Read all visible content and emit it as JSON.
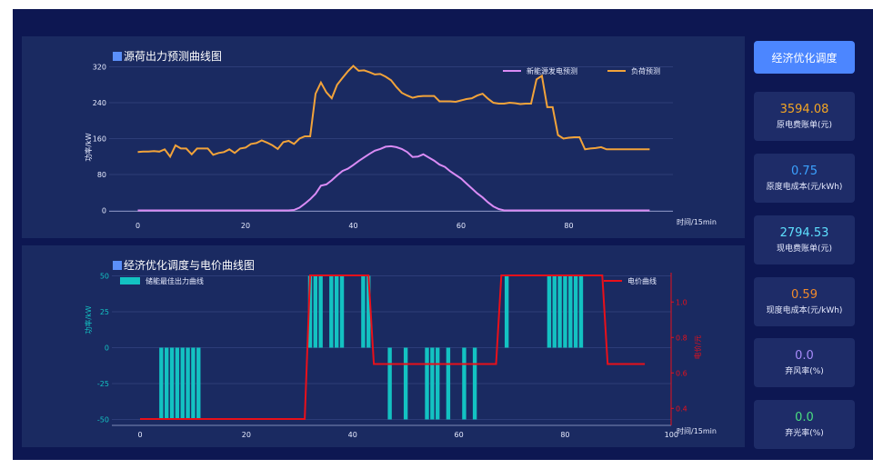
{
  "panel1": {
    "title": "源荷出力预测曲线图"
  },
  "panel2": {
    "title": "经济优化调度与电价曲线图"
  },
  "button": {
    "label": "经济优化调度"
  },
  "cards": [
    {
      "value": "3594.08",
      "label": "原电费账单(元)",
      "color": "#f5a623"
    },
    {
      "value": "0.75",
      "label": "原度电成本(元/kWh)",
      "color": "#3ba1ff"
    },
    {
      "value": "2794.53",
      "label": "现电费账单(元)",
      "color": "#5ee0ff"
    },
    {
      "value": "0.59",
      "label": "现度电成本(元/kWh)",
      "color": "#f08a2c"
    },
    {
      "value": "0.0",
      "label": "弃风率(%)",
      "color": "#a78bfa"
    },
    {
      "value": "0.0",
      "label": "弃光率(%)",
      "color": "#4ade80"
    }
  ],
  "chart_data": [
    {
      "type": "line",
      "title": "源荷出力预测曲线图",
      "xlabel": "时间/15min",
      "ylabel": "功率/kW",
      "xlim": [
        -4,
        100
      ],
      "ylim": [
        -10,
        320
      ],
      "x_ticks": [
        0,
        20,
        40,
        60,
        80
      ],
      "y_ticks": [
        0,
        80,
        160,
        240,
        320
      ],
      "legend_position": "top-right",
      "series": [
        {
          "name": "新能源发电预测",
          "color": "#d98bf5",
          "values": [
            0,
            0,
            0,
            0,
            0,
            0,
            0,
            0,
            0,
            0,
            0,
            0,
            0,
            0,
            0,
            0,
            0,
            0,
            0,
            0,
            0,
            0,
            0,
            0,
            0,
            0,
            0,
            0,
            0,
            1,
            6,
            15,
            25,
            37,
            55,
            58,
            67,
            78,
            88,
            93,
            101,
            110,
            118,
            126,
            133,
            137,
            142,
            143,
            141,
            137,
            130,
            119,
            120,
            125,
            118,
            111,
            102,
            97,
            87,
            79,
            71,
            60,
            49,
            38,
            29,
            18,
            9,
            3,
            0,
            0,
            0,
            0,
            0,
            0,
            0,
            0,
            0,
            0,
            0,
            0,
            0,
            0,
            0,
            0,
            0,
            0,
            0,
            0,
            0,
            0,
            0,
            0,
            0,
            0,
            0,
            0
          ]
        },
        {
          "name": "负荷预测",
          "color": "#f2a33a",
          "values": [
            130,
            131,
            131,
            132,
            131,
            136,
            120,
            145,
            138,
            138,
            125,
            138,
            138,
            138,
            124,
            128,
            130,
            136,
            128,
            138,
            140,
            148,
            150,
            156,
            151,
            145,
            137,
            152,
            155,
            148,
            160,
            165,
            165,
            260,
            285,
            263,
            250,
            280,
            295,
            310,
            322,
            311,
            312,
            308,
            303,
            304,
            298,
            290,
            275,
            262,
            256,
            251,
            254,
            255,
            255,
            255,
            243,
            243,
            243,
            242,
            245,
            248,
            250,
            256,
            260,
            249,
            240,
            238,
            238,
            240,
            239,
            237,
            238,
            238,
            292,
            300,
            230,
            230,
            168,
            160,
            162,
            163,
            163,
            136,
            138,
            139,
            141,
            136,
            136,
            136,
            136,
            136,
            136,
            136,
            136,
            136
          ]
        }
      ]
    },
    {
      "type": "bar",
      "title": "经济优化调度与电价曲线图",
      "xlabel": "时间/15min",
      "ylabel": "功率/kW",
      "y2label": "电价/元",
      "xlim": [
        -4,
        100
      ],
      "ylim": [
        -55,
        55
      ],
      "y2lim": [
        0.28,
        1.25
      ],
      "x_ticks": [
        0,
        20,
        40,
        60,
        80,
        100
      ],
      "y_ticks": [
        -50,
        -25,
        0,
        25,
        50
      ],
      "y2_ticks": [
        0.4,
        0.6,
        0.8,
        1.0
      ],
      "legend_position": "top",
      "series": [
        {
          "name": "储能最佳出力曲线",
          "color": "#13c2c2",
          "bars": [
            [
              4,
              -50
            ],
            [
              5,
              -50
            ],
            [
              6,
              -50
            ],
            [
              7,
              -50
            ],
            [
              8,
              -50
            ],
            [
              9,
              -50
            ],
            [
              10,
              -50
            ],
            [
              11,
              -50
            ],
            [
              32,
              50
            ],
            [
              33,
              50
            ],
            [
              34,
              50
            ],
            [
              36,
              50
            ],
            [
              37,
              50
            ],
            [
              38,
              50
            ],
            [
              42,
              50
            ],
            [
              43,
              50
            ],
            [
              47,
              -50
            ],
            [
              50,
              -50
            ],
            [
              54,
              -50
            ],
            [
              55,
              -50
            ],
            [
              56,
              -50
            ],
            [
              58,
              -50
            ],
            [
              61,
              -50
            ],
            [
              63,
              -50
            ],
            [
              69,
              50
            ],
            [
              77,
              50
            ],
            [
              78,
              50
            ],
            [
              79,
              50
            ],
            [
              80,
              50
            ],
            [
              81,
              50
            ],
            [
              82,
              50
            ],
            [
              83,
              50
            ]
          ]
        },
        {
          "name": "电价曲线",
          "color": "#e8101a",
          "points": [
            [
              0,
              0.34
            ],
            [
              31,
              0.34
            ],
            [
              32,
              1.15
            ],
            [
              43,
              1.15
            ],
            [
              44,
              0.65
            ],
            [
              67,
              0.65
            ],
            [
              68,
              1.15
            ],
            [
              87,
              1.15
            ],
            [
              88,
              0.65
            ],
            [
              95,
              0.65
            ]
          ]
        }
      ]
    }
  ]
}
